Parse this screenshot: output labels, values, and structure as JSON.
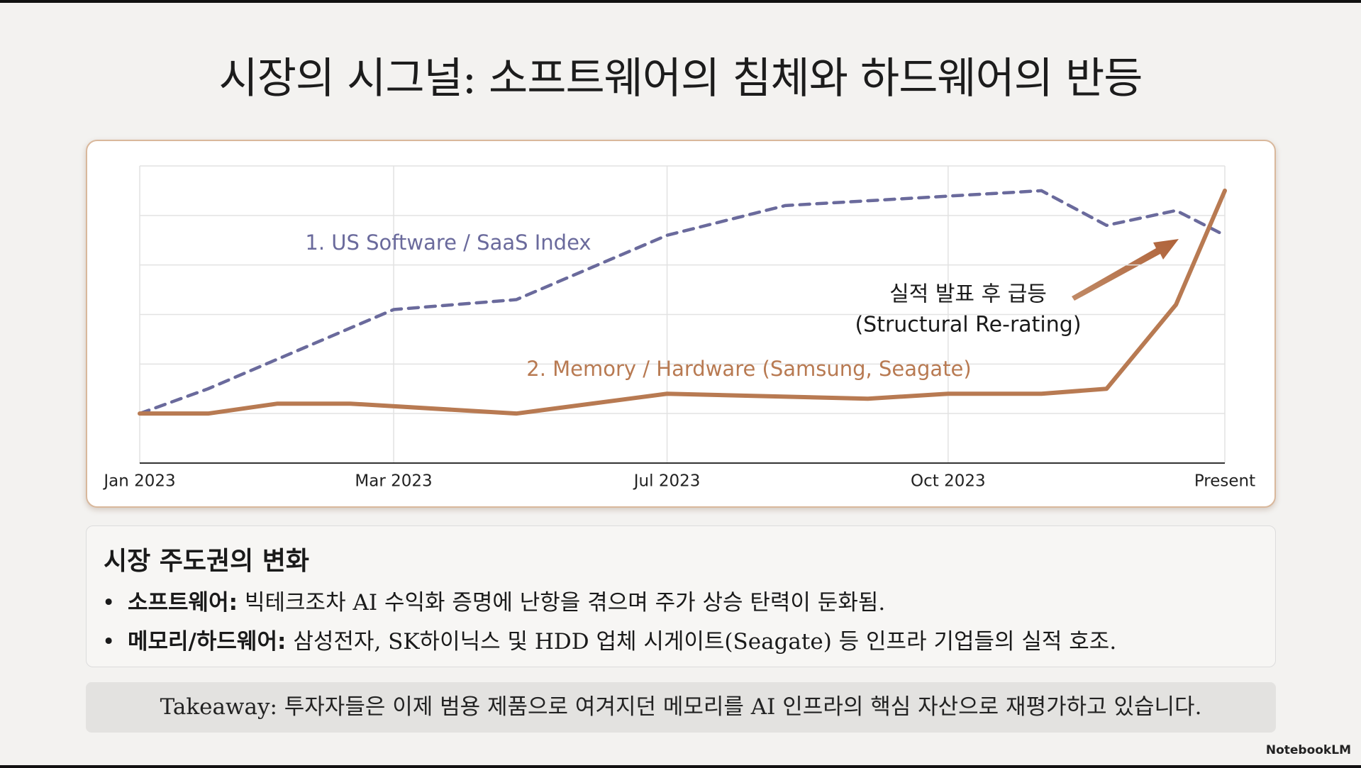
{
  "title": "시장의 시그널: 소프트웨어의 침체와 하드웨어의 반등",
  "chart_data": {
    "type": "line",
    "xlim": [
      0,
      100
    ],
    "xticks": [
      {
        "value": 0,
        "label": "Jan 2023"
      },
      {
        "value": 23.4,
        "label": "Mar 2023"
      },
      {
        "value": 48.6,
        "label": "Jul 2023"
      },
      {
        "value": 74.5,
        "label": "Oct 2023"
      },
      {
        "value": 100,
        "label": "Present"
      }
    ],
    "ylim": [
      0,
      6
    ],
    "yticks": [
      0,
      1,
      2,
      3,
      4,
      5,
      6
    ],
    "grid": true,
    "series": [
      {
        "name": "1. US Software / SaaS Index",
        "color": "#6a6a9c",
        "style": "dashed",
        "x": [
          0,
          6.3,
          23.4,
          34.7,
          48.6,
          59.5,
          83.1,
          89.1,
          95.5,
          100
        ],
        "values": [
          1.0,
          1.5,
          3.1,
          3.3,
          4.6,
          5.2,
          5.5,
          4.8,
          5.1,
          4.6
        ]
      },
      {
        "name": "2. Memory / Hardware (Samsung, Seagate)",
        "color": "#b87a52",
        "style": "solid",
        "x": [
          0,
          6.3,
          12.7,
          19.4,
          34.7,
          48.6,
          67.1,
          74.5,
          83.1,
          89.1,
          95.5,
          100
        ],
        "values": [
          1.0,
          1.0,
          1.2,
          1.2,
          1.0,
          1.4,
          1.3,
          1.4,
          1.4,
          1.5,
          3.2,
          5.5
        ]
      }
    ],
    "annotations": [
      "실적 발표 후 급등",
      "(Structural Re-rating)"
    ]
  },
  "panel": {
    "heading": "시장 주도권의 변화",
    "bullets": [
      {
        "label": "소프트웨어:",
        "text": "빅테크조차 AI 수익화 증명에 난항을 겪으며 주가 상승 탄력이 둔화됨."
      },
      {
        "label": "메모리/하드웨어:",
        "text": "삼성전자, SK하이닉스 및 HDD 업체 시게이트(Seagate) 등 인프라 기업들의 실적 호조."
      }
    ]
  },
  "takeaway": "Takeaway: 투자자들은 이제 범용 제품으로 여겨지던 메모리를 AI 인프라의 핵심 자산으로 재평가하고 있습니다.",
  "brand": "NotebookLM"
}
